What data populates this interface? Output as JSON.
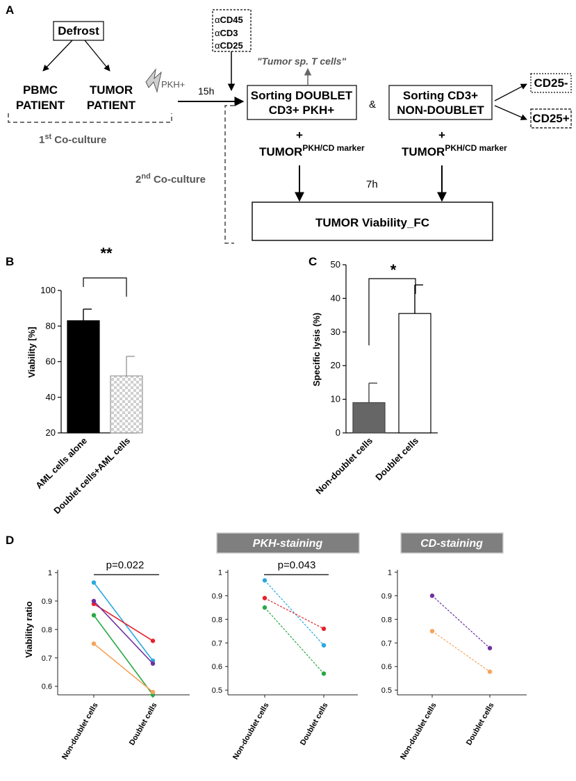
{
  "panel_A": {
    "label": "A",
    "defrost": "Defrost",
    "pbmc_line1": "PBMC",
    "pbmc_line2": "PATIENT",
    "tumor_line1": "TUMOR",
    "tumor_line2": "PATIENT",
    "pkh_label": "PKH+",
    "time_15h": "15h",
    "antibodies": [
      "CD45",
      "CD3",
      "CD25"
    ],
    "alpha_symbol": "α",
    "tumor_sp_label": "\"Tumor sp. T cells\"",
    "sort_doublet_line1": "Sorting DOUBLET",
    "sort_doublet_line2": "CD3+ PKH+",
    "ampersand": "&",
    "sort_cd3_line1": "Sorting CD3+",
    "sort_cd3_line2": "NON-DOUBLET",
    "cd25_neg": "CD25-",
    "cd25_pos": "CD25+",
    "plus": "+",
    "tumor_marker_main": "TUMOR",
    "tumor_marker_sup": "PKH/CD marker",
    "first_coculture_main": "1",
    "first_coculture_sup": "st",
    "first_coculture_rest": " Co-culture",
    "second_coculture_main": "2",
    "second_coculture_sup": "nd",
    "second_coculture_rest": " Co-culture",
    "time_7h": "7h",
    "viability_box": "TUMOR Viability_FC"
  },
  "colors": {
    "black": "#000000",
    "dark_gray": "#666666",
    "checker_a": "#d4d4d4",
    "checker_b": "#ffffff",
    "header_gray": "#7f7f7f",
    "blue": "#29a8e0",
    "red": "#e8202a",
    "purple": "#7030a0",
    "green": "#27a844",
    "orange": "#f7a25a",
    "yellow": "#f5c518"
  },
  "chart_data": [
    {
      "id": "B",
      "type": "bar",
      "panel_label": "B",
      "categories": [
        "AML cells alone",
        "Doublet cells+AML cells"
      ],
      "values": [
        83,
        52
      ],
      "errors": [
        6.5,
        11
      ],
      "fills": [
        "black",
        "checkered"
      ],
      "ylabel": "Viability [%]",
      "ylim": [
        20,
        100
      ],
      "yticks": [
        20,
        40,
        60,
        80,
        100
      ],
      "significance": "**"
    },
    {
      "id": "C",
      "type": "bar",
      "panel_label": "C",
      "categories": [
        "Non-doublet cells",
        "Doublet cells"
      ],
      "values": [
        9,
        35.5
      ],
      "errors": [
        5.8,
        8.5
      ],
      "fills": [
        "dark gray",
        "white"
      ],
      "ylabel": "Specific lysis (%)",
      "ylim": [
        0,
        50
      ],
      "yticks": [
        0,
        10,
        20,
        30,
        40,
        50
      ],
      "significance": "*"
    },
    {
      "id": "D1",
      "type": "line",
      "panel_label": "D",
      "categories": [
        "Non-doublet cells",
        "Doublet cells"
      ],
      "ylabel": "Viability ratio",
      "ylim": [
        0.57,
        1.01
      ],
      "yticks": [
        0.6,
        0.7,
        0.8,
        0.9,
        1
      ],
      "ytick_labels": [
        "0.6",
        "0.7",
        "0.8",
        "0.9",
        "1"
      ],
      "pvalue": "p=0.022",
      "series": [
        {
          "name": "blue",
          "values": [
            0.965,
            0.69
          ]
        },
        {
          "name": "red",
          "values": [
            0.89,
            0.76
          ]
        },
        {
          "name": "purple",
          "values": [
            0.9,
            0.68
          ]
        },
        {
          "name": "green",
          "values": [
            0.85,
            0.57
          ]
        },
        {
          "name": "orange",
          "values": [
            0.75,
            0.58
          ]
        }
      ]
    },
    {
      "id": "D2",
      "type": "line",
      "header": "PKH-staining",
      "categories": [
        "Non-doublet cells",
        "Doublet cells"
      ],
      "ylim": [
        0.48,
        1.01
      ],
      "yticks": [
        0.5,
        0.6,
        0.7,
        0.8,
        0.9,
        1
      ],
      "ytick_labels": [
        "0.5",
        "0.6",
        "0.7",
        "0.8",
        "0.9",
        "1"
      ],
      "pvalue": "p=0.043",
      "series": [
        {
          "name": "blue",
          "values": [
            0.965,
            0.69
          ]
        },
        {
          "name": "red",
          "values": [
            0.89,
            0.76
          ]
        },
        {
          "name": "green",
          "values": [
            0.85,
            0.57
          ]
        }
      ]
    },
    {
      "id": "D3",
      "type": "line",
      "header": "CD-staining",
      "categories": [
        "Non-doublet cells",
        "Doublet cells"
      ],
      "ylim": [
        0.48,
        1.01
      ],
      "yticks": [
        0.5,
        0.6,
        0.7,
        0.8,
        0.9,
        1
      ],
      "ytick_labels": [
        "0.5",
        "0.6",
        "0.7",
        "0.8",
        "0.9",
        "1"
      ],
      "series": [
        {
          "name": "purple",
          "values": [
            0.9,
            0.678
          ]
        },
        {
          "name": "orange",
          "values": [
            0.75,
            0.578
          ]
        }
      ]
    }
  ]
}
